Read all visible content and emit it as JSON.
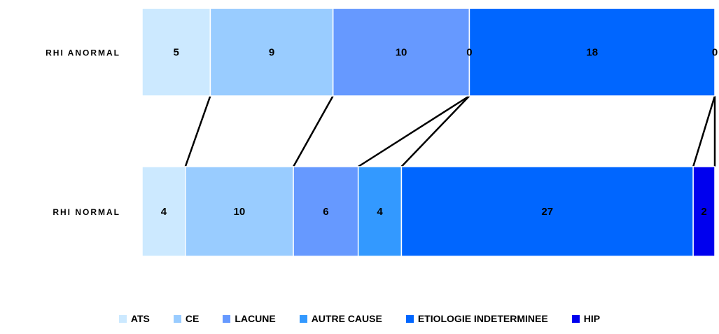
{
  "chart_data": {
    "type": "bar",
    "orientation": "horizontal",
    "stacked": true,
    "title": "",
    "xlabel": "",
    "ylabel": "",
    "grid": false,
    "legend_position": "bottom",
    "categories": [
      "RHI ANORMAL",
      "RHI NORMAL"
    ],
    "series": [
      {
        "name": "ATS",
        "color": "#cce9ff",
        "values": [
          5,
          4
        ]
      },
      {
        "name": "CE",
        "color": "#99ccff",
        "values": [
          9,
          10
        ]
      },
      {
        "name": "LACUNE",
        "color": "#6699ff",
        "values": [
          10,
          6
        ]
      },
      {
        "name": "AUTRE CAUSE",
        "color": "#3399ff",
        "values": [
          0,
          4
        ]
      },
      {
        "name": "ETIOLOGIE INDETERMINEE",
        "color": "#0066ff",
        "values": [
          18,
          27
        ]
      },
      {
        "name": "HIP",
        "color": "#0000ee",
        "values": [
          0,
          2
        ]
      }
    ]
  }
}
